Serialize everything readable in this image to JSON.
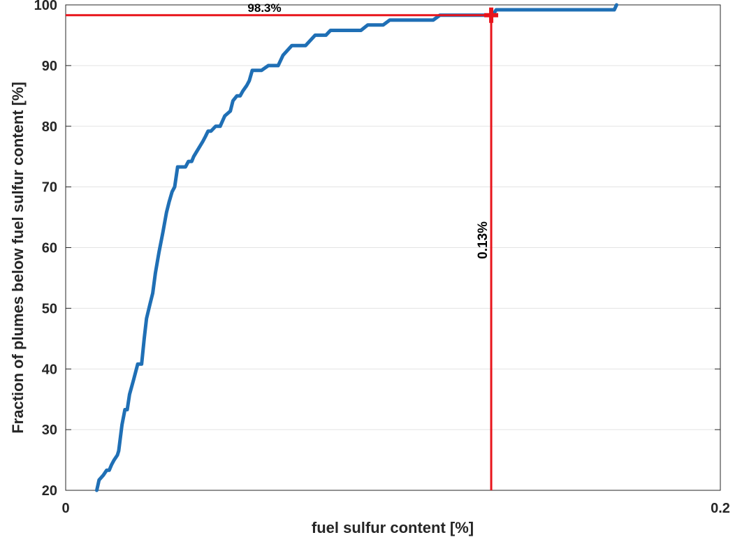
{
  "chart_data": {
    "type": "line",
    "title": "",
    "xlabel": "fuel sulfur content [%]",
    "ylabel": "Fraction of plumes below fuel sulfur content [%]",
    "xlim": [
      0,
      0.2
    ],
    "ylim": [
      20,
      100
    ],
    "xticks": [
      0,
      0.2
    ],
    "xtick_labels": [
      "0",
      "0.2"
    ],
    "yticks": [
      20,
      30,
      40,
      50,
      60,
      70,
      80,
      90,
      100
    ],
    "ytick_labels": [
      "20",
      "30",
      "40",
      "50",
      "60",
      "70",
      "80",
      "90",
      "100"
    ],
    "grid": true,
    "legend": "none",
    "series": [
      {
        "color": "#1f6fb5",
        "x": [
          0.0095,
          0.0102,
          0.0115,
          0.0125,
          0.0133,
          0.014,
          0.0148,
          0.0158,
          0.0162,
          0.0172,
          0.0181,
          0.0188,
          0.0195,
          0.0208,
          0.022,
          0.0232,
          0.024,
          0.0247,
          0.0258,
          0.0266,
          0.0274,
          0.0285,
          0.0297,
          0.0308,
          0.0316,
          0.0325,
          0.0333,
          0.0342,
          0.0355,
          0.0366,
          0.0375,
          0.0385,
          0.0391,
          0.04,
          0.0419,
          0.0427,
          0.0435,
          0.0444,
          0.0458,
          0.0472,
          0.0486,
          0.0503,
          0.0511,
          0.0523,
          0.0533,
          0.0541,
          0.0553,
          0.0561,
          0.057,
          0.0584,
          0.0598,
          0.0619,
          0.0634,
          0.0649,
          0.0664,
          0.0691,
          0.0705,
          0.0719,
          0.0733,
          0.0762,
          0.0779,
          0.0795,
          0.0809,
          0.083,
          0.0849,
          0.0868,
          0.0883,
          0.0902,
          0.0923,
          0.0942,
          0.097,
          0.099,
          0.1014,
          0.1031,
          0.1054,
          0.1069,
          0.1123,
          0.1143,
          0.1172,
          0.1191,
          0.1225,
          0.127,
          0.1305,
          0.1315,
          0.1331,
          0.1343,
          0.1348,
          0.1362,
          0.1376,
          0.1391,
          0.1458,
          0.1515,
          0.1554,
          0.1676,
          0.1683
        ],
        "y": [
          20,
          21.7,
          22.5,
          23.3,
          23.3,
          24.2,
          25.0,
          25.8,
          26.5,
          30.8,
          33.3,
          33.3,
          35.8,
          38.3,
          40.8,
          40.8,
          45.0,
          48.3,
          50.8,
          52.5,
          55.8,
          59.2,
          62.5,
          65.8,
          67.5,
          69.2,
          70.0,
          73.3,
          73.3,
          73.3,
          74.2,
          74.2,
          75.0,
          75.8,
          77.5,
          78.3,
          79.2,
          79.2,
          80.0,
          80.0,
          81.7,
          82.5,
          84.2,
          85.0,
          85.0,
          85.8,
          86.7,
          87.5,
          89.2,
          89.2,
          89.2,
          90.0,
          90.0,
          90.0,
          91.7,
          93.3,
          93.3,
          93.3,
          93.3,
          95.0,
          95.0,
          95.0,
          95.8,
          95.8,
          95.8,
          95.8,
          95.8,
          95.8,
          96.7,
          96.7,
          96.7,
          97.5,
          97.5,
          97.5,
          97.5,
          97.5,
          97.5,
          98.3,
          98.3,
          98.3,
          98.3,
          98.3,
          98.3,
          99.2,
          99.2,
          99.2,
          99.2,
          99.2,
          99.2,
          99.2,
          99.2,
          99.2,
          99.2,
          99.2,
          100.0
        ]
      }
    ],
    "annotations": {
      "threshold_x": 0.13,
      "threshold_y": 98.3,
      "color": "#e8151c",
      "horizontal_label": "98.3%",
      "vertical_label": "0.13%"
    }
  }
}
